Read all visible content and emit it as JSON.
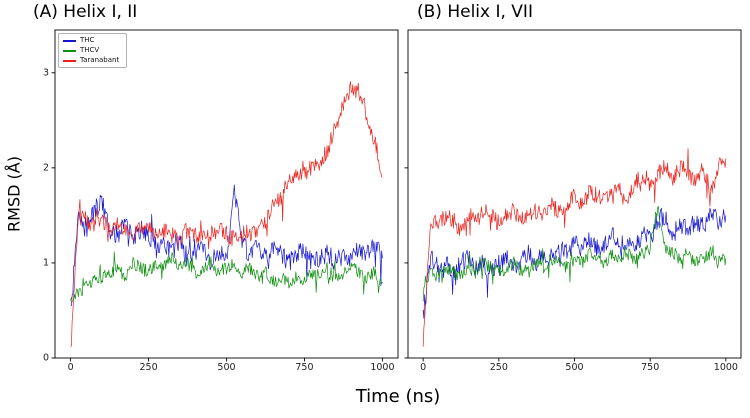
{
  "figure": {
    "background": "#ffffff"
  },
  "chart_data": [
    {
      "type": "line",
      "title": "(A) Helix I, II",
      "xlabel": "Time (ns)",
      "ylabel": "RMSD (Å)",
      "xlim": [
        -50,
        1050
      ],
      "ylim": [
        0,
        3.45
      ],
      "xticks": [
        0,
        250,
        500,
        750,
        1000
      ],
      "yticks": [
        0,
        1,
        2,
        3
      ],
      "show_yticklabels": true,
      "legend_position": "upper left",
      "x_step": 25,
      "series": [
        {
          "name": "THC",
          "color": "#1616cf",
          "noise": 0.1,
          "values": [
            0.45,
            1.5,
            1.35,
            1.55,
            1.65,
            1.35,
            1.3,
            1.4,
            1.25,
            1.35,
            1.3,
            1.15,
            1.2,
            1.1,
            1.2,
            1.05,
            1.1,
            1.15,
            1.0,
            1.1,
            1.05,
            1.8,
            1.2,
            1.1,
            1.15,
            1.05,
            1.15,
            1.1,
            1.0,
            1.1,
            1.15,
            1.0,
            1.05,
            1.1,
            1.0,
            1.1,
            1.05,
            1.15,
            1.1,
            1.2,
            1.05
          ]
        },
        {
          "name": "THCV",
          "color": "#0f8f0f",
          "noise": 0.07,
          "values": [
            0.6,
            0.7,
            0.75,
            0.8,
            0.85,
            0.9,
            0.95,
            0.85,
            1.0,
            0.95,
            0.9,
            1.0,
            0.95,
            1.05,
            0.95,
            1.0,
            0.9,
            0.95,
            1.0,
            0.9,
            0.95,
            1.0,
            0.9,
            0.95,
            0.85,
            0.9,
            0.8,
            0.85,
            0.8,
            0.85,
            0.8,
            0.9,
            0.85,
            0.9,
            0.85,
            0.9,
            0.95,
            0.9,
            0.85,
            0.9,
            0.8
          ]
        },
        {
          "name": "Taranabant",
          "color": "#e8231d",
          "noise": 0.09,
          "values": [
            0.05,
            1.5,
            1.45,
            1.4,
            1.45,
            1.35,
            1.4,
            1.35,
            1.3,
            1.35,
            1.4,
            1.3,
            1.35,
            1.3,
            1.25,
            1.35,
            1.3,
            1.25,
            1.3,
            1.35,
            1.3,
            1.25,
            1.3,
            1.35,
            1.3,
            1.45,
            1.6,
            1.7,
            1.85,
            1.9,
            1.95,
            2.0,
            2.05,
            2.2,
            2.45,
            2.65,
            2.85,
            2.8,
            2.55,
            2.3,
            1.9
          ]
        }
      ]
    },
    {
      "type": "line",
      "title": "(B) Helix I, VII",
      "xlabel": "",
      "ylabel": "",
      "xlim": [
        -50,
        1050
      ],
      "ylim": [
        0,
        3.45
      ],
      "xticks": [
        0,
        250,
        500,
        750,
        1000
      ],
      "yticks": [
        0,
        1,
        2,
        3
      ],
      "show_yticklabels": false,
      "legend_position": "none",
      "x_step": 25,
      "series": [
        {
          "name": "THC",
          "color": "#1616cf",
          "noise": 0.1,
          "values": [
            0.45,
            1.05,
            0.95,
            1.0,
            0.9,
            1.0,
            1.05,
            0.95,
            1.0,
            0.9,
            1.0,
            1.05,
            0.95,
            1.05,
            1.1,
            1.0,
            1.1,
            1.05,
            1.15,
            1.1,
            1.2,
            1.15,
            1.25,
            1.15,
            1.2,
            1.3,
            1.2,
            1.25,
            1.2,
            1.3,
            1.25,
            1.45,
            1.5,
            1.3,
            1.4,
            1.35,
            1.45,
            1.4,
            1.5,
            1.45,
            1.5
          ]
        },
        {
          "name": "THCV",
          "color": "#0f8f0f",
          "noise": 0.07,
          "values": [
            0.75,
            0.9,
            0.85,
            0.95,
            0.9,
            0.85,
            0.95,
            0.9,
            1.0,
            0.95,
            0.9,
            0.95,
            1.0,
            0.9,
            0.95,
            1.0,
            0.95,
            1.05,
            1.0,
            0.95,
            1.05,
            1.0,
            1.1,
            1.05,
            1.0,
            1.1,
            1.05,
            1.1,
            1.05,
            1.1,
            1.15,
            1.6,
            1.15,
            1.1,
            1.05,
            1.1,
            1.0,
            1.05,
            1.1,
            1.0,
            1.05
          ]
        },
        {
          "name": "Taranabant",
          "color": "#e8231d",
          "noise": 0.09,
          "values": [
            0.2,
            1.45,
            1.4,
            1.5,
            1.45,
            1.35,
            1.5,
            1.45,
            1.55,
            1.5,
            1.4,
            1.5,
            1.55,
            1.45,
            1.5,
            1.55,
            1.5,
            1.6,
            1.55,
            1.6,
            1.7,
            1.6,
            1.75,
            1.7,
            1.65,
            1.75,
            1.8,
            1.7,
            1.85,
            1.9,
            1.8,
            1.95,
            2.0,
            1.9,
            2.0,
            1.95,
            1.85,
            2.0,
            1.75,
            2.0,
            2.1
          ]
        }
      ]
    }
  ]
}
